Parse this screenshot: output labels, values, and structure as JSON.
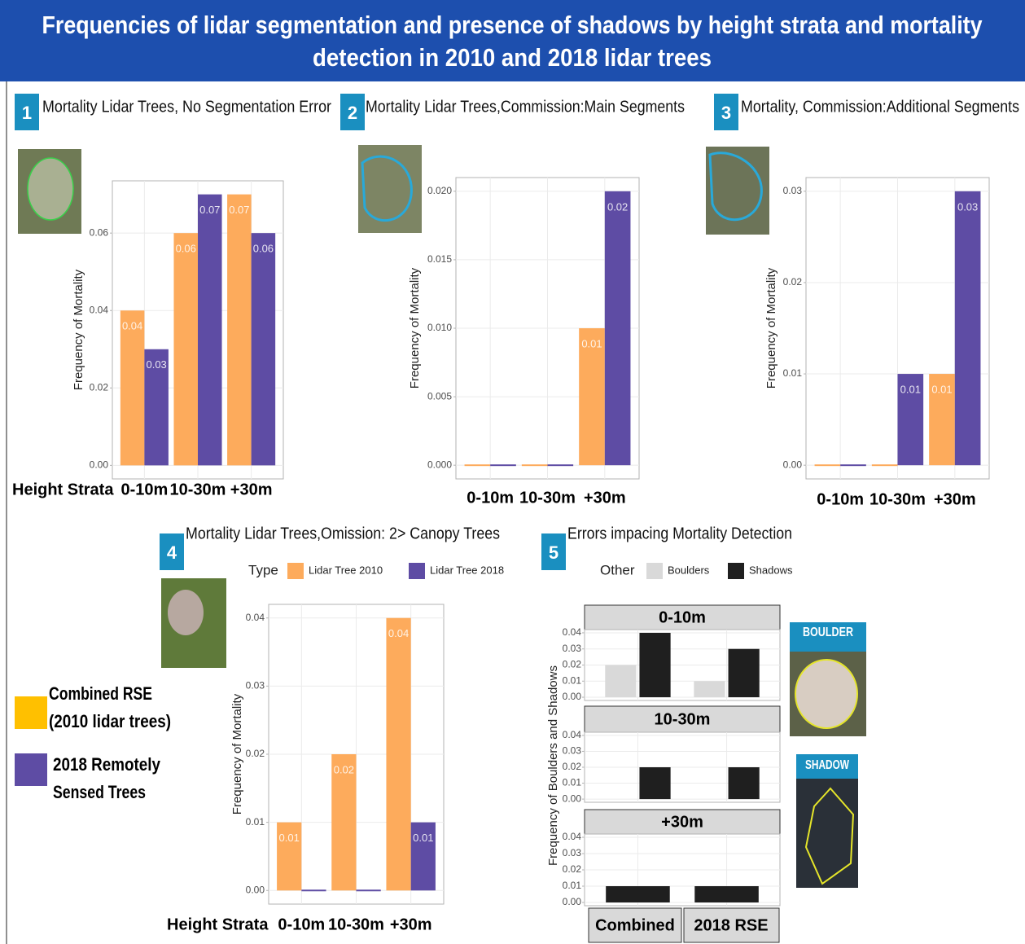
{
  "title": [
    "Frequencies of lidar segmentation and presence of shadows by height strata and mortality",
    "detection in 2010 and 2018 lidar trees"
  ],
  "legend": [
    {
      "color": "#ffc000",
      "label": [
        "Combined RSE",
        "(2010 lidar trees)"
      ]
    },
    {
      "color": "#5e4ca4",
      "label": [
        "2018 Remotely",
        "Sensed Trees"
      ]
    }
  ],
  "image_labels": [
    "BOULDER",
    "SHADOW"
  ],
  "chart_data": [
    {
      "type": "bar",
      "number": "1",
      "title": "Mortality Lidar Trees, No Segmentation Error",
      "xlabel": "Height Strata",
      "ylabel": "Frequency of Mortality",
      "categories": [
        "0-10m",
        "10-30m",
        "+30m"
      ],
      "series": [
        {
          "color": "#fdab5c",
          "values": [
            0.04,
            0.06,
            0.07
          ]
        },
        {
          "color": "#5e4ca4",
          "values": [
            0.03,
            0.07,
            0.06
          ]
        }
      ],
      "ylim": [
        -0.0035,
        0.0735
      ],
      "yticks": [
        {
          "value": 0,
          "label": "0.00"
        },
        0.02,
        0.04,
        0.06
      ],
      "grid": true
    },
    {
      "type": "bar",
      "number": "2",
      "title": "Mortality Lidar Trees,Commission:Main Segments",
      "ylabel": "Frequency of Mortality",
      "categories": [
        "0-10m",
        "10-30m",
        "+30m"
      ],
      "series": [
        {
          "color": "#fdab5c",
          "values": [
            0,
            0,
            0.01
          ]
        },
        {
          "color": "#5e4ca4",
          "values": [
            0,
            0,
            0.02
          ]
        }
      ],
      "ylim": [
        -0.001,
        0.021
      ],
      "yticks": [
        {
          "value": 0,
          "label": "0.000"
        },
        0.005,
        {
          "value": 0.01,
          "label": "0.010"
        },
        0.015,
        {
          "value": 0.02,
          "label": "0.020"
        }
      ],
      "grid": true
    },
    {
      "type": "bar",
      "number": "3",
      "title": "Mortality, Commission:Additional Segments",
      "ylabel": "Frequency of Mortality",
      "categories": [
        "0-10m",
        "10-30m",
        "+30m"
      ],
      "series": [
        {
          "color": "#fdab5c",
          "values": [
            0,
            0,
            0.01
          ]
        },
        {
          "color": "#5e4ca4",
          "values": [
            0,
            0.01,
            0.03
          ]
        }
      ],
      "ylim": [
        -0.0015,
        0.0315
      ],
      "yticks": [
        {
          "value": 0,
          "label": "0.00"
        },
        0.01,
        0.02,
        0.03
      ],
      "grid": true
    },
    {
      "type": "bar",
      "number": "4",
      "title": "Mortality Lidar Trees,Omission: 2> Canopy Trees",
      "xlabel": "Height Strata",
      "ylabel": "Frequency of Mortality",
      "legend_title": "Type",
      "categories": [
        "0-10m",
        "10-30m",
        "+30m"
      ],
      "series": [
        {
          "name": "Lidar Tree 2010",
          "color": "#fdab5c",
          "values": [
            0.01,
            0.02,
            0.04
          ]
        },
        {
          "name": "Lidar Tree 2018",
          "color": "#5e4ca4",
          "values": [
            0,
            0,
            0.01
          ]
        }
      ],
      "ylim": [
        -0.002,
        0.042
      ],
      "yticks": [
        {
          "value": 0,
          "label": "0.00"
        },
        0.01,
        0.02,
        0.03,
        0.04
      ],
      "grid": true
    },
    {
      "type": "facet-bar",
      "number": "5",
      "title": "Errors impacing Mortality Detection",
      "ylabel": "Frequency of Boulders and Shadows",
      "legend_title": "Other",
      "facets": [
        "0-10m",
        "10-30m",
        "+30m"
      ],
      "categories": [
        "Combined",
        "2018 RSE"
      ],
      "series": [
        {
          "name": "Boulders",
          "color": "#d9d9d9",
          "values": [
            [
              0.02,
              0.01
            ],
            [
              0,
              0
            ],
            [
              null,
              null
            ]
          ]
        },
        {
          "name": "Shadows",
          "color": "#1f1f1f",
          "values": [
            [
              0.04,
              0.03
            ],
            [
              0.02,
              0.02
            ],
            [
              0.01,
              0.01
            ]
          ]
        }
      ],
      "ylim": [
        -0.002,
        0.042
      ],
      "yticks": [
        {
          "value": 0,
          "label": "0.00"
        },
        0.01,
        0.02,
        0.03,
        0.04
      ],
      "grid": true
    }
  ]
}
